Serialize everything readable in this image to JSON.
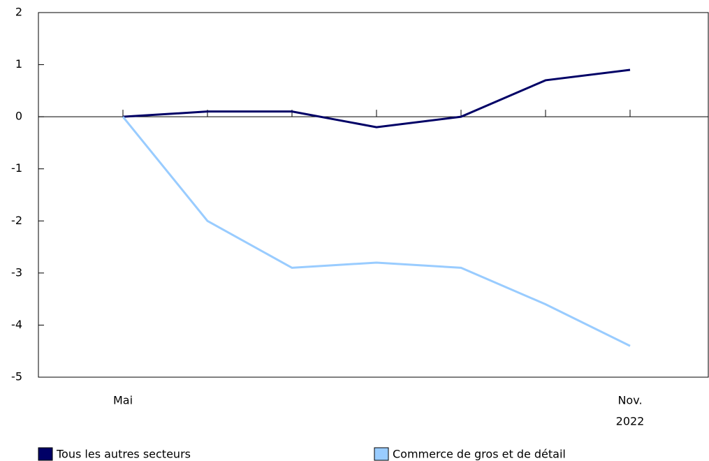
{
  "chart_data": {
    "type": "line",
    "categories": [
      "Mai",
      null,
      null,
      null,
      null,
      null,
      "Nov."
    ],
    "year_label": "2022",
    "series": [
      {
        "name": "Tous les autres secteurs",
        "color": "#000066",
        "values": [
          0,
          0.1,
          0.1,
          -0.2,
          0,
          0.7,
          0.9
        ]
      },
      {
        "name": "Commerce de gros et de détail",
        "color": "#99ccff",
        "values": [
          0,
          -2,
          -2.9,
          -2.8,
          -2.9,
          -3.6,
          -4.4
        ]
      }
    ],
    "ylim": [
      -5,
      2
    ],
    "yticks": [
      -5,
      -4,
      -3,
      -2,
      -1,
      0,
      1,
      2
    ]
  }
}
